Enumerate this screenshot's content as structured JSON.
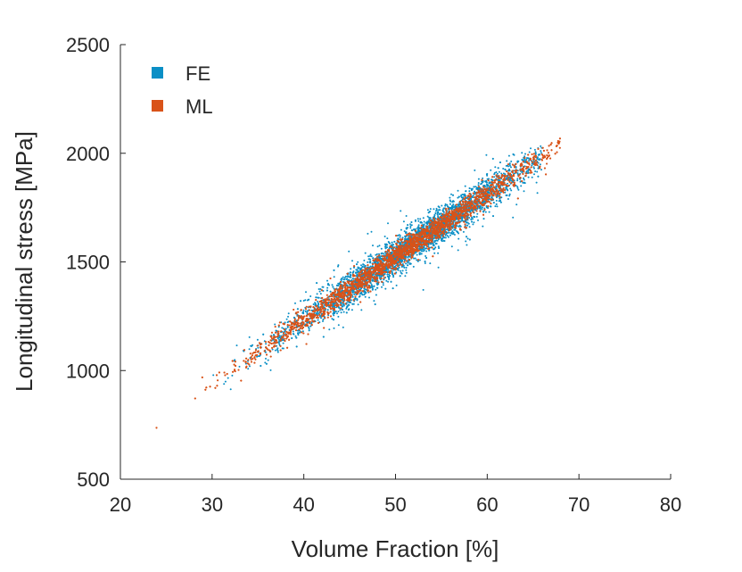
{
  "chart_data": {
    "type": "scatter",
    "title": "",
    "xlabel": "Volume Fraction [%]",
    "ylabel": "Longitudinal stress [MPa]",
    "xlim": [
      20,
      80
    ],
    "ylim": [
      500,
      2500
    ],
    "xticks": [
      20,
      30,
      40,
      50,
      60,
      70,
      80
    ],
    "yticks": [
      500,
      1000,
      1500,
      2000,
      2500
    ],
    "grid": false,
    "legend_position": "top-left",
    "series": [
      {
        "name": "FE",
        "color": "#0a8fc6",
        "x_range": [
          29,
          66
        ],
        "x_mean": 52,
        "x_sd": 7,
        "trend": {
          "slope": 29.2,
          "intercept": 62
        },
        "residual_sd": 40,
        "count": 4000
      },
      {
        "name": "ML",
        "color": "#d95319",
        "x_range": [
          22,
          68
        ],
        "x_mean": 51,
        "x_sd": 8,
        "trend": {
          "slope": 29.2,
          "intercept": 62
        },
        "residual_sd": 25,
        "count": 6000
      }
    ]
  }
}
